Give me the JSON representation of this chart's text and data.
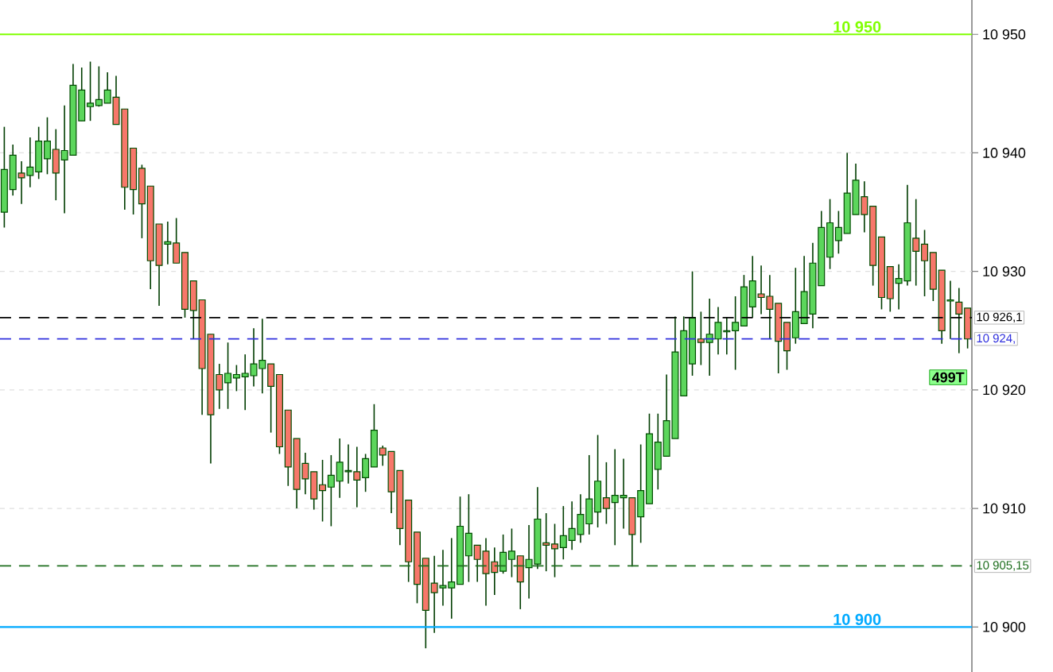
{
  "chart_data": {
    "type": "candlestick",
    "categories": [
      null,
      null,
      null,
      null,
      null,
      null,
      null,
      null,
      null,
      null,
      null,
      null,
      null,
      null,
      null,
      null,
      null,
      null,
      null,
      null,
      null,
      null,
      null,
      null,
      null,
      null,
      null,
      null,
      null,
      null,
      null,
      null,
      null,
      null,
      null,
      null,
      null,
      null,
      null,
      null,
      null,
      null,
      null,
      null,
      null,
      null,
      null,
      null,
      null,
      null,
      null,
      null,
      null,
      null,
      null,
      null,
      null,
      null,
      null,
      null,
      null,
      null,
      null,
      null,
      null,
      null,
      null,
      null,
      null,
      null,
      null,
      null,
      null,
      null,
      null,
      null,
      null,
      null,
      null,
      null,
      null,
      null,
      null,
      null,
      null,
      null,
      null,
      null,
      null,
      null,
      null,
      null,
      null,
      null,
      null,
      null,
      null,
      null,
      null,
      null,
      null,
      null,
      null,
      null,
      null,
      null,
      null,
      null,
      null,
      null,
      null,
      null,
      null
    ],
    "ohlc": [
      [
        10935.0,
        10942.2,
        10933.7,
        10938.6
      ],
      [
        10936.9,
        10940.7,
        10936.4,
        10939.8
      ],
      [
        10938.3,
        10939.3,
        10935.7,
        10937.9
      ],
      [
        10938.1,
        10941.3,
        10937.1,
        10938.8
      ],
      [
        10938.4,
        10942.2,
        10937.8,
        10941.0
      ],
      [
        10939.5,
        10943.0,
        10938.2,
        10941.0
      ],
      [
        10940.3,
        10942.0,
        10936.0,
        10938.3
      ],
      [
        10939.4,
        10944.0,
        10934.9,
        10940.2
      ],
      [
        10939.8,
        10947.5,
        10939.8,
        10945.7
      ],
      [
        10942.7,
        10947.2,
        10942.7,
        10945.3
      ],
      [
        10943.9,
        10947.7,
        10942.7,
        10944.2
      ],
      [
        10944.0,
        10947.3,
        10943.9,
        10944.5
      ],
      [
        10944.2,
        10946.8,
        10944.2,
        10945.3
      ],
      [
        10944.7,
        10946.5,
        10942.4,
        10942.4
      ],
      [
        10943.7,
        10943.7,
        10935.2,
        10937.1
      ],
      [
        10940.4,
        10940.4,
        10934.8,
        10936.9
      ],
      [
        10938.7,
        10939.0,
        10932.8,
        10935.7
      ],
      [
        10937.2,
        10937.2,
        10928.5,
        10930.9
      ],
      [
        10934.0,
        10934.0,
        10927.1,
        10930.5
      ],
      [
        10932.3,
        10934.2,
        10930.6,
        10932.5
      ],
      [
        10932.4,
        10934.5,
        10930.7,
        10930.7
      ],
      [
        10931.6,
        10931.6,
        10926.1,
        10926.8
      ],
      [
        10929.2,
        10929.2,
        10924.3,
        10926.7
      ],
      [
        10927.6,
        10927.6,
        10917.9,
        10921.8
      ],
      [
        10924.7,
        10924.7,
        10913.8,
        10917.9
      ],
      [
        10921.3,
        10922.2,
        10918.4,
        10920.0
      ],
      [
        10920.6,
        10924.0,
        10918.4,
        10921.4
      ],
      [
        10921.0,
        10922.1,
        10919.9,
        10921.3
      ],
      [
        10921.1,
        10923.0,
        10918.3,
        10921.4
      ],
      [
        10921.2,
        10925.2,
        10920.3,
        10922.2
      ],
      [
        10921.8,
        10926.0,
        10919.7,
        10922.5
      ],
      [
        10922.2,
        10922.2,
        10916.4,
        10920.3
      ],
      [
        10921.3,
        10921.3,
        10914.6,
        10915.2
      ],
      [
        10918.3,
        10918.3,
        10911.9,
        10913.5
      ],
      [
        10915.9,
        10915.9,
        10910.0,
        10911.6
      ],
      [
        10913.8,
        10914.7,
        10911.2,
        10912.5
      ],
      [
        10913.1,
        10913.1,
        10909.9,
        10910.8
      ],
      [
        10912.0,
        10914.1,
        10908.9,
        10911.5
      ],
      [
        10911.8,
        10914.5,
        10908.5,
        10912.8
      ],
      [
        10912.3,
        10915.9,
        10910.9,
        10913.9
      ],
      [
        10913.1,
        10915.4,
        10912.1,
        10913.2
      ],
      [
        10913.1,
        10915.2,
        10910.1,
        10912.4
      ],
      [
        10912.6,
        10914.6,
        10911.4,
        10914.2
      ],
      [
        10913.5,
        10918.8,
        10913.5,
        10916.6
      ],
      [
        10915.1,
        10915.3,
        10913.6,
        10914.5
      ],
      [
        10914.8,
        10914.8,
        10909.6,
        10911.4
      ],
      [
        10913.2,
        10913.2,
        10906.9,
        10908.3
      ],
      [
        10910.7,
        10910.7,
        10903.8,
        10905.5
      ],
      [
        10908.0,
        10908.0,
        10902.0,
        10903.6
      ],
      [
        10905.8,
        10905.8,
        10898.2,
        10901.4
      ],
      [
        10903.7,
        10906.0,
        10899.5,
        10902.9
      ],
      [
        10903.3,
        10906.5,
        10901.8,
        10903.5
      ],
      [
        10903.3,
        10907.5,
        10900.7,
        10903.8
      ],
      [
        10903.6,
        10911.0,
        10903.6,
        10908.5
      ],
      [
        10906.0,
        10911.2,
        10903.8,
        10907.9
      ],
      [
        10906.9,
        10906.9,
        10903.8,
        10905.7
      ],
      [
        10906.4,
        10907.5,
        10901.8,
        10904.5
      ],
      [
        10905.5,
        10906.7,
        10902.7,
        10904.6
      ],
      [
        10904.7,
        10907.8,
        10904.5,
        10906.3
      ],
      [
        10905.7,
        10908.3,
        10904.2,
        10906.4
      ],
      [
        10906.0,
        10906.0,
        10901.5,
        10903.8
      ],
      [
        10905.0,
        10908.6,
        10902.4,
        10905.7
      ],
      [
        10905.3,
        10911.8,
        10904.9,
        10909.1
      ],
      [
        10907.1,
        10909.6,
        10904.7,
        10906.9
      ],
      [
        10907.0,
        10908.7,
        10904.2,
        10906.6
      ],
      [
        10906.7,
        10910.2,
        10905.7,
        10907.7
      ],
      [
        10907.3,
        10910.6,
        10906.5,
        10908.3
      ],
      [
        10907.8,
        10911.2,
        10907.1,
        10909.5
      ],
      [
        10908.7,
        10914.5,
        10907.8,
        10910.8
      ],
      [
        10909.7,
        10916.2,
        10908.4,
        10912.3
      ],
      [
        10910.9,
        10913.9,
        10908.7,
        10910.0
      ],
      [
        10910.5,
        10915.0,
        10906.9,
        10911.1
      ],
      [
        10910.9,
        10914.2,
        10908.3,
        10911.1
      ],
      [
        10910.9,
        10910.9,
        10905.1,
        10907.8
      ],
      [
        10909.3,
        10915.4,
        10907.1,
        10911.5
      ],
      [
        10910.4,
        10918.0,
        10910.4,
        10916.3
      ],
      [
        10913.3,
        10918.0,
        10911.6,
        10915.6
      ],
      [
        10914.4,
        10921.3,
        10914.4,
        10917.4
      ],
      [
        10915.9,
        10926.2,
        10915.9,
        10923.2
      ],
      [
        10919.5,
        10926.2,
        10919.5,
        10925.0
      ],
      [
        10922.2,
        10930.0,
        10921.2,
        10926.1
      ],
      [
        10924.3,
        10926.6,
        10922.1,
        10924.0
      ],
      [
        10924.0,
        10927.7,
        10921.2,
        10924.7
      ],
      [
        10924.3,
        10927.0,
        10923.0,
        10925.7
      ],
      [
        10924.9,
        10926.1,
        10923.0,
        10925.0
      ],
      [
        10925.0,
        10927.9,
        10921.7,
        10925.7
      ],
      [
        10925.4,
        10929.7,
        10925.4,
        10928.7
      ],
      [
        10927.0,
        10931.3,
        10926.1,
        10929.2
      ],
      [
        10928.1,
        10930.5,
        10926.4,
        10927.8
      ],
      [
        10927.9,
        10929.7,
        10924.3,
        10926.8
      ],
      [
        10927.3,
        10927.3,
        10921.4,
        10924.1
      ],
      [
        10925.7,
        10925.7,
        10921.7,
        10923.3
      ],
      [
        10924.4,
        10930.3,
        10923.9,
        10926.6
      ],
      [
        10925.6,
        10931.3,
        10925.6,
        10928.3
      ],
      [
        10926.4,
        10932.4,
        10925.2,
        10930.7
      ],
      [
        10928.8,
        10935.1,
        10928.8,
        10933.7
      ],
      [
        10931.2,
        10936.1,
        10930.2,
        10934.1
      ],
      [
        10932.6,
        10935.1,
        10931.5,
        10933.7
      ],
      [
        10933.2,
        10940.0,
        10933.2,
        10936.6
      ],
      [
        10934.8,
        10939.1,
        10934.8,
        10937.7
      ],
      [
        10936.3,
        10937.6,
        10933.3,
        10934.8
      ],
      [
        10935.5,
        10935.5,
        10928.8,
        10930.5
      ],
      [
        10932.9,
        10932.9,
        10926.8,
        10927.8
      ],
      [
        10930.4,
        10930.4,
        10926.6,
        10927.7
      ],
      [
        10929.0,
        10930.6,
        10926.8,
        10929.4
      ],
      [
        10929.2,
        10937.3,
        10928.8,
        10934.1
      ],
      [
        10932.8,
        10936.1,
        10928.8,
        10931.7
      ],
      [
        10932.3,
        10933.5,
        10927.9,
        10930.9
      ],
      [
        10931.6,
        10931.6,
        10927.5,
        10928.5
      ],
      [
        10930.1,
        10930.1,
        10923.9,
        10925.0
      ],
      [
        10927.5,
        10929.2,
        10924.3,
        10927.6
      ],
      [
        10927.4,
        10928.6,
        10923.1,
        10926.4
      ],
      [
        10926.9,
        10926.9,
        10923.5,
        10924.3
      ]
    ],
    "colors": [
      "#5cd65c",
      "#5cd65c",
      "#f7776a",
      "#5cd65c",
      "#5cd65c",
      "#5cd65c",
      "#f7776a",
      "#5cd65c",
      "#5cd65c",
      "#5cd65c",
      "#5cd65c",
      "#5cd65c",
      "#5cd65c",
      "#f7776a",
      "#f7776a",
      "#f7776a",
      "#f7776a",
      "#f7776a",
      "#f7776a",
      "#5cd65c",
      "#f7776a",
      "#f7776a",
      "#f7776a",
      "#f7776a",
      "#f7776a",
      "#f7776a",
      "#5cd65c",
      "#5cd65c",
      "#5cd65c",
      "#5cd65c",
      "#5cd65c",
      "#f7776a",
      "#f7776a",
      "#f7776a",
      "#f7776a",
      "#f7776a",
      "#f7776a",
      "#f7776a",
      "#5cd65c",
      "#5cd65c",
      "#5cd65c",
      "#f7776a",
      "#5cd65c",
      "#5cd65c",
      "#f7776a",
      "#f7776a",
      "#f7776a",
      "#f7776a",
      "#f7776a",
      "#f7776a",
      "#f7776a",
      "#5cd65c",
      "#5cd65c",
      "#5cd65c",
      "#5cd65c",
      "#f7776a",
      "#f7776a",
      "#f7776a",
      "#5cd65c",
      "#5cd65c",
      "#f7776a",
      "#5cd65c",
      "#5cd65c",
      "#f7776a",
      "#f7776a",
      "#5cd65c",
      "#5cd65c",
      "#5cd65c",
      "#5cd65c",
      "#5cd65c",
      "#f7776a",
      "#5cd65c",
      "#5cd65c",
      "#f7776a",
      "#5cd65c",
      "#5cd65c",
      "#5cd65c",
      "#5cd65c",
      "#5cd65c",
      "#5cd65c",
      "#5cd65c",
      "#f7776a",
      "#5cd65c",
      "#5cd65c",
      "#5cd65c",
      "#5cd65c",
      "#5cd65c",
      "#5cd65c",
      "#f7776a",
      "#f7776a",
      "#f7776a",
      "#f7776a",
      "#5cd65c",
      "#5cd65c",
      "#5cd65c",
      "#5cd65c",
      "#5cd65c",
      "#5cd65c",
      "#5cd65c",
      "#5cd65c",
      "#f7776a",
      "#f7776a",
      "#f7776a",
      "#f7776a",
      "#5cd65c",
      "#5cd65c",
      "#f7776a",
      "#f7776a",
      "#f7776a",
      "#f7776a",
      "#5cd65c",
      "#f7776a",
      "#f7776a"
    ],
    "ylim": [
      10896.2,
      10952.9
    ],
    "yticks": [
      {
        "value": 10900,
        "label": "10 900"
      },
      {
        "value": 10910,
        "label": "10 910"
      },
      {
        "value": 10920,
        "label": "10 920"
      },
      {
        "value": 10930,
        "label": "10 930"
      },
      {
        "value": 10940,
        "label": "10 940"
      },
      {
        "value": 10950,
        "label": "10 950"
      }
    ],
    "grid": "y",
    "ref_lines": [
      {
        "axis": "y",
        "value": 10950,
        "label": "10 950",
        "color": "#80ff00",
        "line_style": "solid"
      },
      {
        "axis": "y",
        "value": 10900,
        "label": "10 900",
        "color": "#00aaff",
        "line_style": "solid"
      },
      {
        "axis": "y",
        "value": 10926.1,
        "label": "10 926,1",
        "color": "#000000",
        "line_style": "dashed"
      },
      {
        "axis": "y",
        "value": 10924.3,
        "label": "10 924,",
        "color": "#3030dd",
        "line_style": "dashed"
      },
      {
        "axis": "y",
        "value": 10905.15,
        "label": "10 905,15",
        "color": "#1e6e1e",
        "line_style": "dashed"
      }
    ],
    "annotations": [
      "499T"
    ]
  }
}
